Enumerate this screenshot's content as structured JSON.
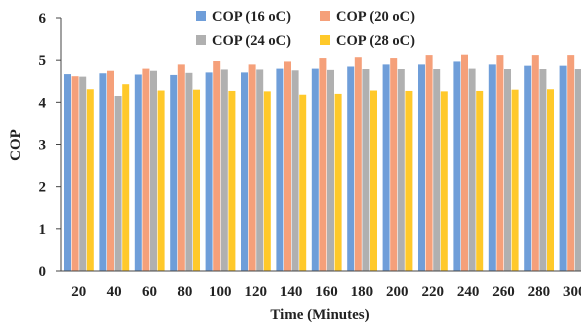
{
  "chart_data": {
    "type": "bar",
    "xlabel": "Time (Minutes)",
    "ylabel": "COP",
    "ylim": [
      0,
      6
    ],
    "yticks": [
      "0",
      "1",
      "2",
      "3",
      "4",
      "5",
      "6"
    ],
    "categories": [
      "20",
      "40",
      "60",
      "80",
      "100",
      "120",
      "140",
      "160",
      "180",
      "200",
      "220",
      "240",
      "260",
      "280",
      "300"
    ],
    "series": [
      {
        "name": "COP (16 oC)",
        "color": "#6f9ed9",
        "values": [
          4.67,
          4.69,
          4.66,
          4.65,
          4.71,
          4.71,
          4.8,
          4.8,
          4.85,
          4.9,
          4.9,
          4.97,
          4.9,
          4.87,
          4.87
        ]
      },
      {
        "name": "COP (20 oC)",
        "color": "#f5a07a",
        "values": [
          4.62,
          4.75,
          4.8,
          4.9,
          4.98,
          4.9,
          4.97,
          5.05,
          5.07,
          5.05,
          5.12,
          5.13,
          5.12,
          5.12,
          5.12
        ]
      },
      {
        "name": "COP (24 oC)",
        "color": "#b0b0b0",
        "values": [
          4.61,
          4.15,
          4.75,
          4.7,
          4.78,
          4.78,
          4.76,
          4.77,
          4.79,
          4.79,
          4.79,
          4.8,
          4.79,
          4.79,
          4.79
        ]
      },
      {
        "name": "COP (28 oC)",
        "color": "#ffc92a",
        "values": [
          4.31,
          4.43,
          4.28,
          4.3,
          4.27,
          4.26,
          4.18,
          4.2,
          4.28,
          4.27,
          4.26,
          4.27,
          4.3,
          4.31,
          4.3
        ]
      }
    ],
    "grid": false,
    "legend_position": "top-center"
  }
}
